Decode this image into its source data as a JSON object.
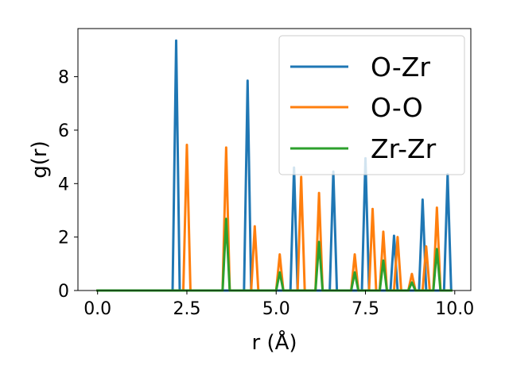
{
  "chart_data": {
    "type": "line",
    "title": "",
    "xlabel": "r (Å)",
    "ylabel": "g(r)",
    "xlim": [
      -0.55,
      10.45
    ],
    "ylim": [
      0,
      9.8
    ],
    "xticks": [
      0.0,
      2.5,
      5.0,
      7.5,
      10.0
    ],
    "xtick_labels": [
      "0.0",
      "2.5",
      "5.0",
      "7.5",
      "10.0"
    ],
    "yticks": [
      0,
      2,
      4,
      6,
      8
    ],
    "ytick_labels": [
      "0",
      "2",
      "4",
      "6",
      "8"
    ],
    "grid": false,
    "legend_position": "top-right",
    "series": [
      {
        "name": "O-Zr",
        "color": "#1f77b4",
        "x": [
          0.0,
          2.1,
          2.2,
          2.3,
          4.1,
          4.2,
          4.3,
          5.4,
          5.5,
          5.6,
          6.5,
          6.6,
          6.7,
          7.4,
          7.5,
          7.6,
          8.2,
          8.3,
          8.4,
          9.0,
          9.1,
          9.2,
          9.7,
          9.8,
          9.9
        ],
        "y": [
          0,
          0,
          9.35,
          0,
          0,
          7.85,
          0,
          0,
          4.6,
          0,
          0,
          4.45,
          0,
          0,
          4.95,
          0,
          0,
          2.05,
          0,
          0,
          3.4,
          0,
          0,
          4.35,
          0
        ]
      },
      {
        "name": "O-O",
        "color": "#ff7f0e",
        "x": [
          0.0,
          2.4,
          2.5,
          2.6,
          3.5,
          3.6,
          3.7,
          4.3,
          4.4,
          4.5,
          5.0,
          5.1,
          5.2,
          5.6,
          5.7,
          5.8,
          6.1,
          6.2,
          6.3,
          7.1,
          7.2,
          7.3,
          7.6,
          7.7,
          7.8,
          7.9,
          8.0,
          8.1,
          8.3,
          8.4,
          8.5,
          8.7,
          8.8,
          8.9,
          9.1,
          9.2,
          9.3,
          9.4,
          9.5,
          9.6,
          9.9
        ],
        "y": [
          0,
          0,
          5.45,
          0,
          0,
          5.35,
          0,
          0,
          2.4,
          0,
          0,
          1.35,
          0,
          0,
          4.25,
          0,
          0,
          3.65,
          0,
          0,
          1.35,
          0,
          0,
          3.05,
          0,
          0,
          2.2,
          0,
          0,
          2.0,
          0,
          0,
          0.62,
          0,
          0,
          1.65,
          0,
          0,
          3.1,
          0,
          0
        ]
      },
      {
        "name": "Zr-Zr",
        "color": "#2ca02c",
        "x": [
          0.0,
          3.5,
          3.6,
          3.7,
          5.0,
          5.1,
          5.2,
          6.1,
          6.2,
          6.3,
          7.1,
          7.2,
          7.3,
          7.9,
          8.0,
          8.1,
          8.7,
          8.8,
          8.9,
          9.4,
          9.5,
          9.6,
          9.9
        ],
        "y": [
          0,
          0,
          2.68,
          0,
          0,
          0.68,
          0,
          0,
          1.82,
          0,
          0,
          0.68,
          0,
          0,
          1.12,
          0,
          0,
          0.3,
          0,
          0,
          1.55,
          0,
          0
        ]
      }
    ]
  }
}
